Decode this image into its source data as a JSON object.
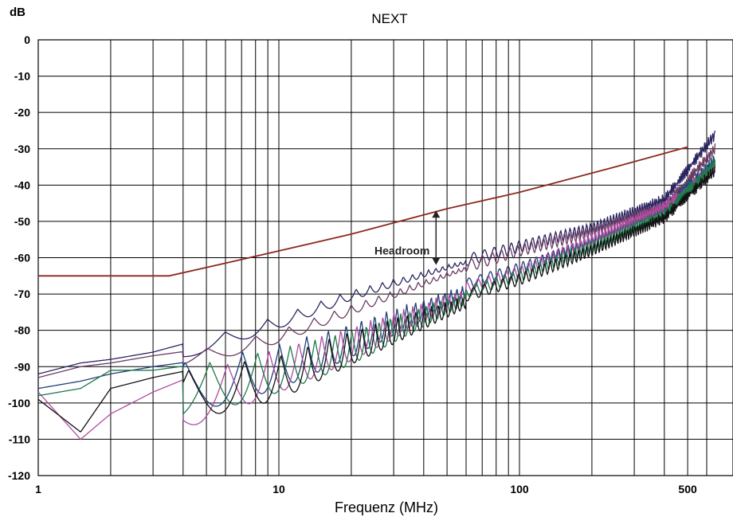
{
  "chart_data": {
    "type": "line",
    "title": "NEXT",
    "xlabel": "Frequenz (MHz)",
    "ylabel": "dB",
    "x_scale": "log",
    "xlim": [
      1,
      650
    ],
    "ylim": [
      -120,
      0
    ],
    "x_ticks": [
      1,
      10,
      100,
      500
    ],
    "y_ticks": [
      0,
      -10,
      -20,
      -30,
      -40,
      -50,
      -60,
      -70,
      -80,
      -90,
      -100,
      -110,
      -120
    ],
    "grid": true,
    "annotation": {
      "text": "Headroom",
      "x": 45,
      "y_from": -47,
      "y_to": -62
    },
    "limit_line": {
      "color": "#8b2a1e",
      "x": [
        1,
        3.5,
        7,
        20,
        50,
        100,
        250,
        500
      ],
      "y": [
        -65,
        -65,
        -60.5,
        -53.5,
        -46.5,
        -42,
        -35,
        -29.5
      ]
    },
    "series": [
      {
        "color": "#2a2560",
        "x": [
          1,
          1.5,
          2,
          3,
          5,
          10,
          20,
          50,
          100,
          200,
          400,
          650
        ],
        "y": [
          -92,
          -89,
          -88,
          -86,
          -82,
          -76,
          -69,
          -62,
          -57,
          -52,
          -44,
          -26
        ]
      },
      {
        "color": "#6b3a62",
        "x": [
          1,
          1.5,
          2,
          3,
          5,
          10,
          20,
          50,
          100,
          200,
          400,
          650
        ],
        "y": [
          -93,
          -90,
          -89,
          -87,
          -85,
          -80,
          -73,
          -64,
          -58,
          -53,
          -46,
          -30
        ]
      },
      {
        "color": "#1e3f7a",
        "x": [
          1,
          1.5,
          2,
          3,
          5,
          10,
          20,
          50,
          100,
          200,
          400,
          650
        ],
        "y": [
          -96,
          -94,
          -92,
          -90,
          -88,
          -84,
          -78,
          -69,
          -63,
          -56,
          -47,
          -33
        ]
      },
      {
        "color": "#b04aa0",
        "x": [
          1,
          1.5,
          2,
          3,
          5,
          10,
          20,
          50,
          100,
          200,
          400,
          650
        ],
        "y": [
          -97,
          -110,
          -103,
          -97,
          -91,
          -85,
          -79,
          -70,
          -64,
          -55,
          -46,
          -35
        ]
      },
      {
        "color": "#1e7a4a",
        "x": [
          1,
          1.5,
          2,
          3,
          5,
          10,
          20,
          50,
          100,
          200,
          400,
          650
        ],
        "y": [
          -98,
          -96,
          -91,
          -91,
          -89,
          -85,
          -80,
          -71,
          -65,
          -57,
          -48,
          -34
        ]
      },
      {
        "color": "#111111",
        "x": [
          1,
          1.5,
          2,
          3,
          5,
          10,
          20,
          50,
          100,
          200,
          400,
          650
        ],
        "y": [
          -99,
          -108,
          -96,
          -93,
          -90,
          -87,
          -80,
          -72,
          -66,
          -58,
          -49,
          -36
        ]
      }
    ]
  }
}
